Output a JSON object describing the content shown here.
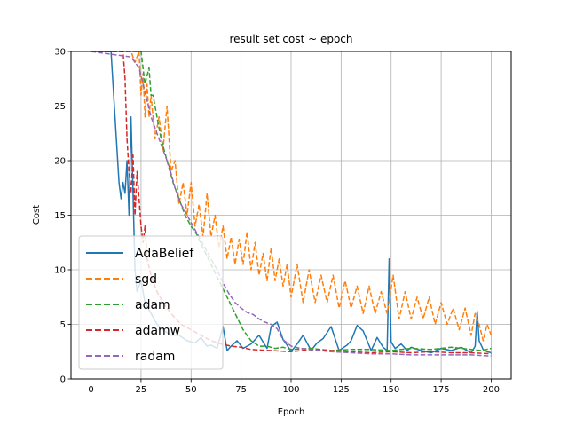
{
  "chart_data": {
    "type": "line",
    "title": "result set cost ~ epoch",
    "xlabel": "Epoch",
    "ylabel": "Cost",
    "xlim": [
      -10,
      210
    ],
    "ylim": [
      0,
      30
    ],
    "xticks": [
      0,
      25,
      50,
      75,
      100,
      125,
      150,
      175,
      200
    ],
    "yticks": [
      0,
      5,
      10,
      15,
      20,
      25,
      30
    ],
    "grid": true,
    "legend_position": "lower-left",
    "series": [
      {
        "name": "AdaBelief",
        "color": "#1f77b4",
        "dash": "solid",
        "x": [
          0,
          10,
          12,
          14,
          15,
          16,
          17,
          18,
          19,
          20,
          21,
          22,
          23,
          25,
          27,
          30,
          33,
          36,
          40,
          44,
          48,
          52,
          55,
          58,
          60,
          63,
          66,
          68,
          70,
          73,
          76,
          80,
          84,
          88,
          90,
          93,
          96,
          98,
          100,
          103,
          106,
          110,
          113,
          116,
          120,
          124,
          128,
          130,
          133,
          136,
          140,
          143,
          146,
          148,
          149,
          150,
          152,
          155,
          158,
          160,
          165,
          170,
          175,
          180,
          185,
          190,
          192,
          193,
          194,
          196,
          198,
          200
        ],
        "y": [
          30,
          30,
          24,
          18,
          16.5,
          18,
          17,
          20,
          15,
          24,
          17,
          10,
          8,
          9,
          7,
          6,
          5,
          4.5,
          4,
          4,
          3.5,
          3.3,
          3.8,
          3,
          3.1,
          2.8,
          4.8,
          2.6,
          3,
          3.5,
          2.8,
          3.2,
          4,
          2.8,
          4.8,
          5.2,
          3.6,
          3.1,
          2.5,
          3.2,
          4,
          2.6,
          3.3,
          3.7,
          4.8,
          2.6,
          3.1,
          3.5,
          4.9,
          4.4,
          2.6,
          3.8,
          2.9,
          2.6,
          11,
          3.4,
          2.8,
          3.2,
          2.6,
          2.9,
          2.6,
          2.4,
          2.8,
          2.6,
          2.9,
          2.4,
          3,
          6.2,
          3.5,
          2.7,
          2.5,
          2.4
        ]
      },
      {
        "name": "sgd",
        "color": "#ff7f0e",
        "dash": "dashed",
        "x": [
          0,
          20,
          22,
          24,
          25,
          26,
          27,
          28,
          29,
          30,
          32,
          34,
          36,
          38,
          40,
          42,
          44,
          46,
          48,
          50,
          52,
          54,
          56,
          58,
          60,
          62,
          64,
          66,
          68,
          70,
          72,
          74,
          76,
          78,
          80,
          82,
          84,
          86,
          88,
          90,
          92,
          94,
          96,
          98,
          100,
          103,
          106,
          109,
          112,
          115,
          118,
          121,
          124,
          127,
          130,
          133,
          136,
          139,
          142,
          145,
          148,
          151,
          154,
          157,
          160,
          163,
          166,
          169,
          172,
          175,
          178,
          181,
          184,
          187,
          190,
          192,
          194,
          196,
          198,
          200
        ],
        "y": [
          30,
          30,
          29,
          30,
          26,
          28,
          24,
          27,
          24,
          26,
          22,
          24,
          21,
          25,
          19,
          20,
          16,
          18,
          15,
          18,
          14,
          16,
          13,
          17,
          13,
          15,
          12,
          14,
          11,
          13,
          10.5,
          12.8,
          10.5,
          13.5,
          10,
          12.5,
          9.5,
          11.5,
          9,
          12,
          9,
          11,
          8.5,
          10.5,
          7.5,
          10.5,
          7,
          10,
          7,
          9.5,
          7,
          9.5,
          6.5,
          9,
          6.5,
          8.5,
          6,
          8.5,
          6,
          8,
          6,
          9.5,
          5.5,
          8,
          5.5,
          7.5,
          5.5,
          7.5,
          5,
          7,
          5,
          6.5,
          4.5,
          6.5,
          4,
          6,
          5,
          3.5,
          5,
          4
        ]
      },
      {
        "name": "adam",
        "color": "#2ca02c",
        "dash": "dashed",
        "x": [
          0,
          25,
          27,
          29,
          30,
          31,
          33,
          35,
          38,
          41,
          44,
          47,
          50,
          53,
          56,
          60,
          64,
          68,
          72,
          76,
          80,
          84,
          88,
          92,
          96,
          100,
          110,
          120,
          130,
          140,
          150,
          160,
          170,
          180,
          190,
          195,
          200
        ],
        "y": [
          30,
          30,
          27,
          28.5,
          26,
          26,
          24,
          22,
          20,
          18,
          16.5,
          15,
          14,
          13.2,
          12,
          10.5,
          9,
          7.5,
          6,
          4.5,
          3.5,
          3,
          3,
          2.8,
          2.9,
          2.7,
          2.8,
          2.6,
          2.7,
          2.7,
          2.6,
          2.8,
          2.7,
          2.9,
          2.7,
          2.6,
          2.8
        ]
      },
      {
        "name": "adamw",
        "color": "#d62728",
        "dash": "dashed",
        "x": [
          0,
          16,
          17,
          18,
          19,
          20,
          21,
          22,
          23,
          24,
          25,
          26,
          27,
          28,
          30,
          33,
          36,
          40,
          45,
          50,
          55,
          60,
          65,
          70,
          75,
          80,
          90,
          100,
          110,
          120,
          130,
          140,
          150,
          160,
          170,
          180,
          190,
          200
        ],
        "y": [
          30,
          30,
          27.5,
          22,
          19,
          17,
          20.5,
          15,
          19,
          16.5,
          14,
          12.5,
          14,
          11,
          9.5,
          8,
          7,
          6,
          5,
          4.5,
          4,
          3.5,
          3.2,
          3,
          2.9,
          2.7,
          2.6,
          2.5,
          2.7,
          2.6,
          2.5,
          2.4,
          2.5,
          2.4,
          2.5,
          2.4,
          2.4,
          2.3
        ]
      },
      {
        "name": "radam",
        "color": "#9467bd",
        "dash": "dashed",
        "x": [
          0,
          20,
          22,
          24,
          26,
          28,
          30,
          33,
          36,
          39,
          42,
          45,
          48,
          51,
          54,
          57,
          60,
          63,
          66,
          69,
          72,
          75,
          78,
          81,
          84,
          87,
          90,
          93,
          96,
          100,
          105,
          110,
          120,
          130,
          140,
          150,
          160,
          170,
          180,
          190,
          200
        ],
        "y": [
          30,
          29.5,
          29,
          28.5,
          27,
          25.5,
          24,
          22.5,
          21,
          19.5,
          17.5,
          16,
          15,
          14,
          13,
          12,
          11,
          10,
          8.8,
          7.8,
          7,
          6.5,
          6.1,
          5.9,
          5.5,
          5.2,
          5,
          4.6,
          3.6,
          3,
          2.8,
          2.7,
          2.5,
          2.4,
          2.3,
          2.3,
          2.2,
          2.2,
          2.2,
          2.2,
          2.1
        ]
      }
    ]
  }
}
